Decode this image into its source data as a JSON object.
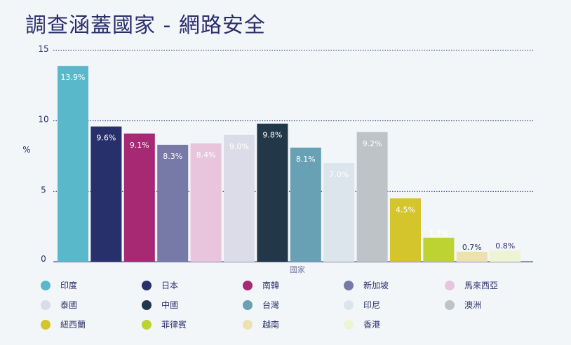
{
  "chart_data": {
    "type": "bar",
    "title": "調查涵蓋國家 - 網路安全",
    "xlabel": "國家",
    "ylabel": "%",
    "ylim": [
      0,
      15
    ],
    "yticks": [
      "0",
      "5",
      "10",
      "15"
    ],
    "grid": true,
    "legend_position": "bottom",
    "categories": [
      "印度",
      "日本",
      "南韓",
      "新加坡",
      "馬來西亞",
      "泰國",
      "中國",
      "台灣",
      "印尼",
      "澳洲",
      "紐西蘭",
      "菲律賓",
      "越南",
      "香港"
    ],
    "values": [
      13.9,
      9.6,
      9.1,
      8.3,
      8.4,
      9.0,
      9.8,
      8.1,
      7.0,
      9.2,
      4.5,
      1.7,
      0.7,
      0.8
    ],
    "data_labels": [
      "13.9%",
      "9.6%",
      "9.1%",
      "8.3%",
      "8.4%",
      "9.0%",
      "9.8%",
      "8.1%",
      "7.0%",
      "9.2%",
      "4.5%",
      "1.7%",
      "0.7%",
      "0.8%"
    ],
    "colors": [
      "#5ab8cb",
      "#27306b",
      "#a72873",
      "#7779a7",
      "#e8c4dd",
      "#dcdce9",
      "#223748",
      "#68a1b4",
      "#dde5ec",
      "#bec3c8",
      "#d3c52b",
      "#bcd331",
      "#ede1b1",
      "#eff3d6"
    ],
    "label_colors": [
      "#ffffff",
      "#ffffff",
      "#ffffff",
      "#ffffff",
      "#ffffff",
      "#ffffff",
      "#ffffff",
      "#ffffff",
      "#ffffff",
      "#ffffff",
      "#ffffff",
      "#ffffff",
      "#2a2f6b",
      "#2a2f6b"
    ]
  }
}
